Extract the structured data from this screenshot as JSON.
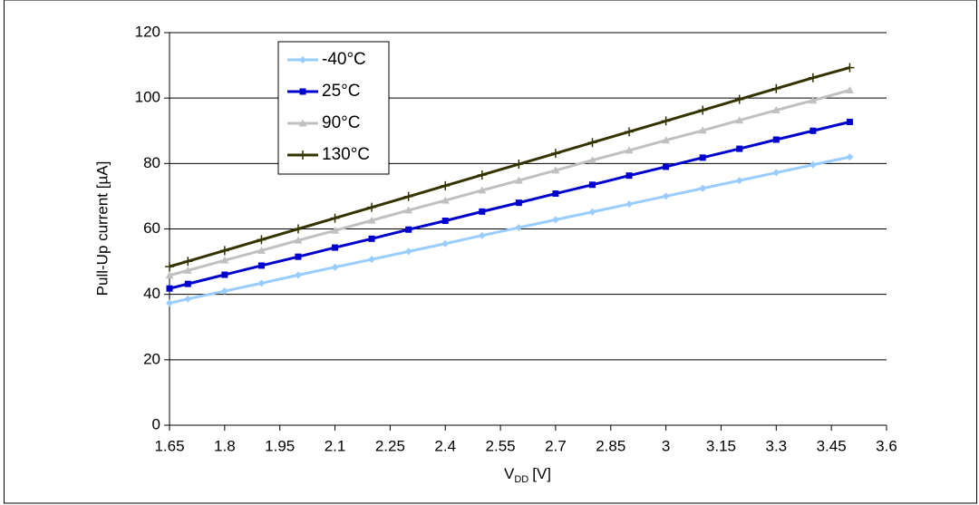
{
  "chart_data": {
    "type": "line",
    "x_label": {
      "text": "V",
      "subscript": "DD",
      "suffix": "[V]"
    },
    "y_label": "Pull-Up current [µA]",
    "x": [
      1.65,
      1.7,
      1.8,
      1.9,
      2.0,
      2.1,
      2.2,
      2.3,
      2.4,
      2.5,
      2.6,
      2.7,
      2.8,
      2.9,
      3.0,
      3.1,
      3.2,
      3.3,
      3.4,
      3.5
    ],
    "series": [
      {
        "name": "-40°C",
        "color": "#99ccff",
        "marker": "diamond",
        "values": [
          37.3,
          38.6,
          41.0,
          43.4,
          45.9,
          48.3,
          50.7,
          53.1,
          55.5,
          58.0,
          60.4,
          62.8,
          65.2,
          67.6,
          70.0,
          72.4,
          74.8,
          77.2,
          79.6,
          82.0
        ]
      },
      {
        "name": "25°C",
        "color": "#0000cc",
        "marker": "square",
        "values": [
          41.8,
          43.2,
          46.0,
          48.8,
          51.5,
          54.3,
          57.0,
          59.8,
          62.5,
          65.3,
          68.0,
          70.8,
          73.5,
          76.3,
          79.0,
          81.8,
          84.5,
          87.3,
          90.0,
          92.7
        ]
      },
      {
        "name": "90°C",
        "color": "#c0c0c0",
        "marker": "triangle",
        "values": [
          45.8,
          47.3,
          50.4,
          53.4,
          56.5,
          59.5,
          62.6,
          65.7,
          68.7,
          71.8,
          74.8,
          77.9,
          81.0,
          84.0,
          87.1,
          90.1,
          93.2,
          96.3,
          99.3,
          102.4
        ]
      },
      {
        "name": "130°C",
        "color": "#333300",
        "marker": "plus",
        "values": [
          48.5,
          50.1,
          53.4,
          56.7,
          60.0,
          63.3,
          66.6,
          69.9,
          73.2,
          76.5,
          79.8,
          83.1,
          86.4,
          89.7,
          93.0,
          96.3,
          99.6,
          102.9,
          106.2,
          109.3
        ]
      }
    ],
    "xlim": [
      1.65,
      3.6
    ],
    "xticks": [
      1.65,
      1.8,
      1.95,
      2.1,
      2.25,
      2.4,
      2.55,
      2.7,
      2.85,
      3,
      3.15,
      3.3,
      3.45,
      3.6
    ],
    "ylim": [
      0,
      120
    ],
    "yticks": [
      0,
      20,
      40,
      60,
      80,
      100,
      120
    ],
    "grid": true,
    "legend": "upper-left"
  }
}
